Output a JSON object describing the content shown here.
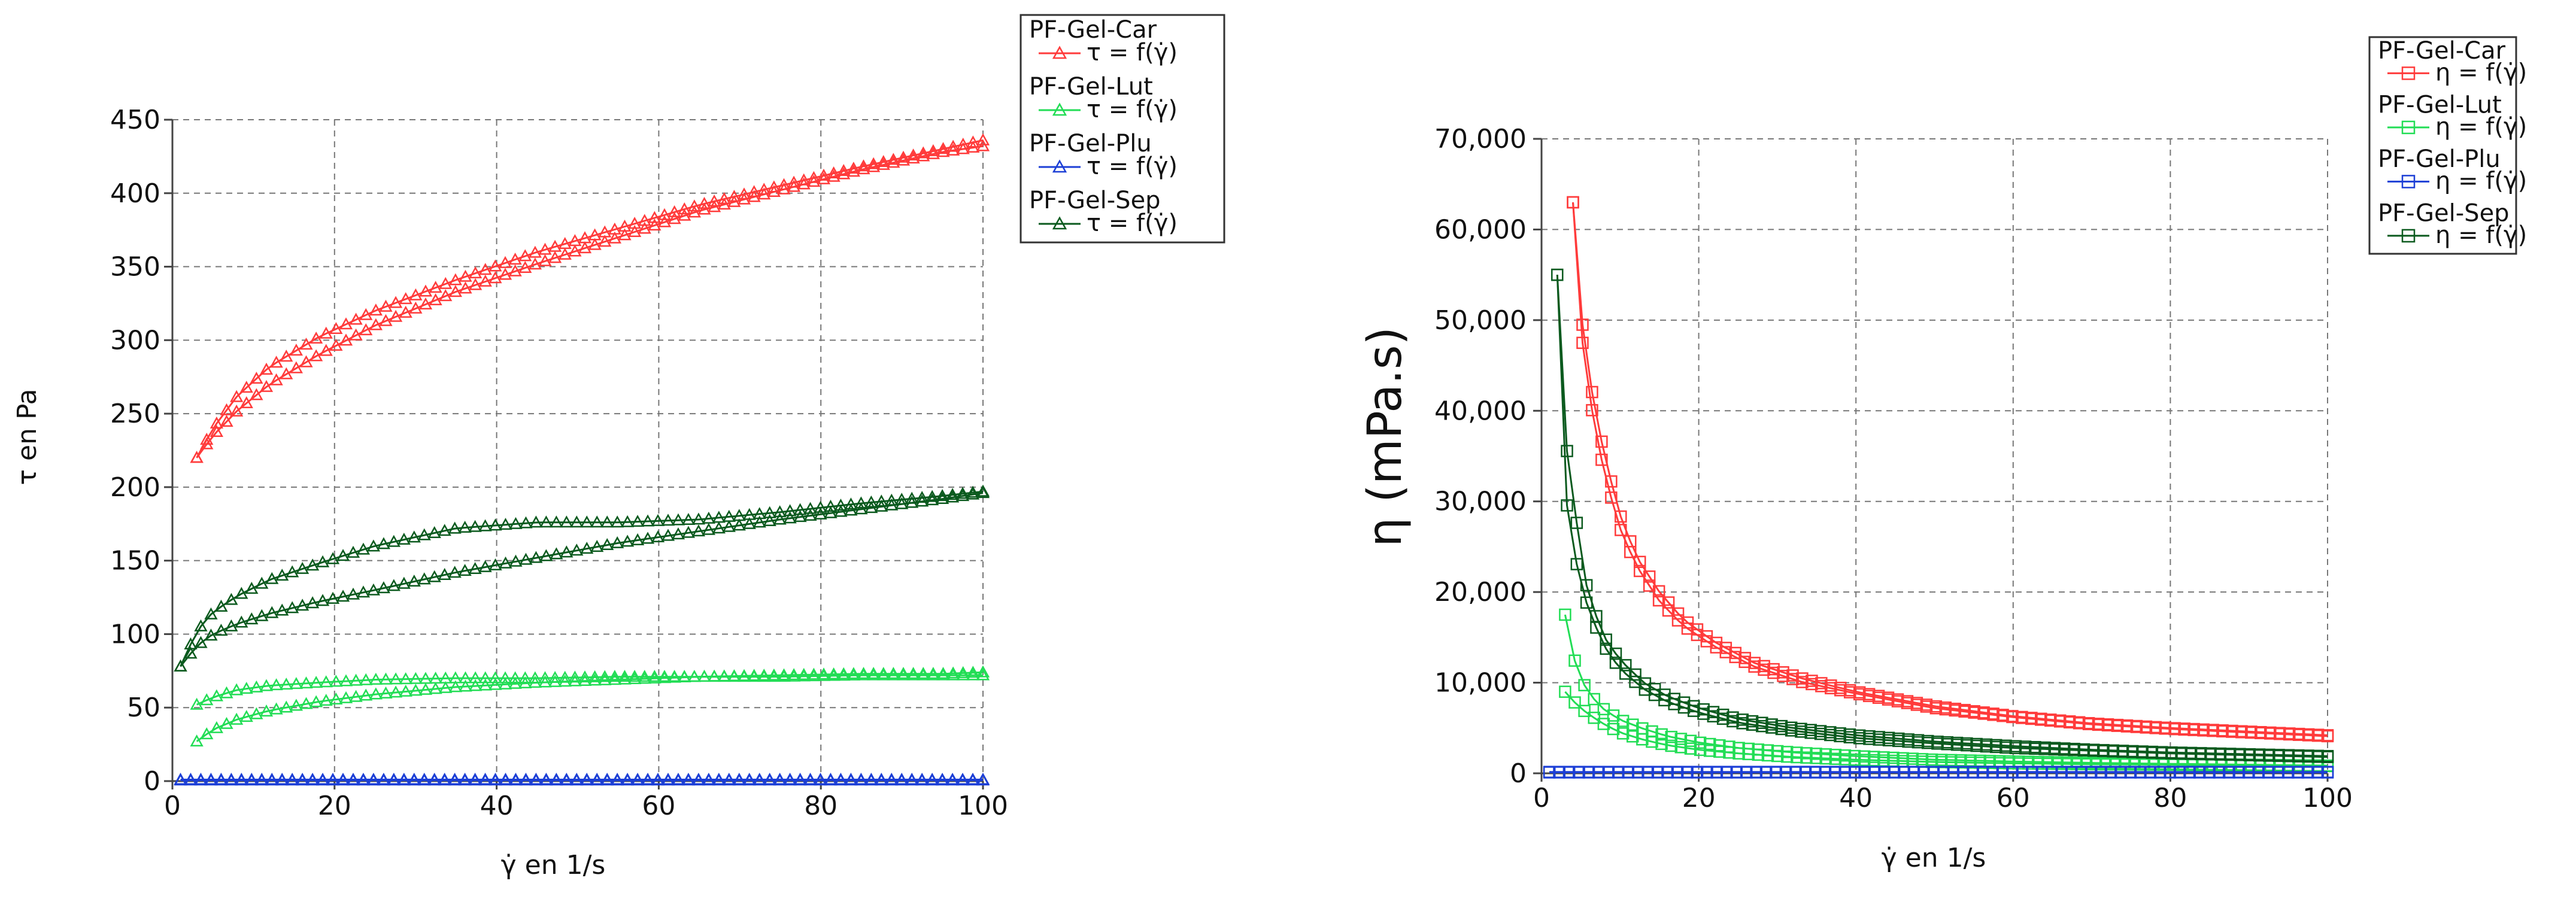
{
  "chart_data": [
    {
      "type": "line",
      "id": "shear-stress",
      "title": "",
      "xlabel": "γ̇ en 1/s",
      "ylabel": "τ en Pa",
      "xlim": [
        0,
        100
      ],
      "ylim": [
        0,
        450
      ],
      "xticks": [
        0,
        20,
        40,
        60,
        80,
        100
      ],
      "yticks": [
        0,
        50,
        100,
        150,
        200,
        250,
        300,
        350,
        400,
        450
      ],
      "ytick_labels": [
        "0",
        "50",
        "100",
        "150",
        "200",
        "250",
        "300",
        "350",
        "400",
        "450"
      ],
      "grid": true,
      "marker": "triangle",
      "legend_position": "top-right",
      "series": [
        {
          "name": "PF-Gel-Car",
          "label": "τ = f(γ̇)",
          "color": "#ff3b3b",
          "up": {
            "x": [
              3,
              5,
              8,
              12,
              18,
              25,
              35,
              45,
              55,
              65,
              75,
              85,
              95,
              100
            ],
            "y": [
              220,
              240,
              262,
              282,
              302,
              320,
              341,
              360,
              376,
              392,
              405,
              418,
              430,
              436
            ]
          },
          "down": {
            "x": [
              3,
              5,
              8,
              12,
              18,
              25,
              35,
              45,
              55,
              65,
              75,
              85,
              95,
              100
            ],
            "y": [
              220,
              235,
              252,
              270,
              290,
              310,
              333,
              352,
              370,
              388,
              402,
              416,
              428,
              432
            ]
          }
        },
        {
          "name": "PF-Gel-Lut",
          "label": "τ = f(γ̇)",
          "color": "#22dd55",
          "up": {
            "x": [
              3,
              5,
              8,
              12,
              18,
              25,
              35,
              45,
              55,
              65,
              75,
              85,
              95,
              100
            ],
            "y": [
              52,
              57,
              62,
              65,
              67,
              69,
              70,
              70,
              71,
              71,
              71,
              72,
              72,
              72
            ]
          },
          "down": {
            "x": [
              3,
              5,
              8,
              12,
              18,
              25,
              35,
              45,
              55,
              65,
              75,
              85,
              95,
              100
            ],
            "y": [
              27,
              35,
              42,
              48,
              54,
              59,
              64,
              67,
              69,
              71,
              72,
              73,
              73,
              74
            ]
          }
        },
        {
          "name": "PF-Gel-Plu",
          "label": "τ = f(γ̇)",
          "color": "#1c3fd6",
          "up": {
            "x": [
              1,
              20,
              40,
              60,
              80,
              100
            ],
            "y": [
              1,
              1,
              1,
              1,
              1,
              1
            ]
          },
          "down": {
            "x": [
              1,
              20,
              40,
              60,
              80,
              100
            ],
            "y": [
              0.5,
              0.5,
              0.5,
              0.5,
              0.5,
              0.5
            ]
          }
        },
        {
          "name": "PF-Gel-Sep",
          "label": "τ = f(γ̇)",
          "color": "#0b5a1e",
          "up": {
            "x": [
              1,
              3,
              5,
              8,
              12,
              18,
              25,
              35,
              45,
              55,
              65,
              75,
              85,
              95,
              100
            ],
            "y": [
              78,
              102,
              115,
              126,
              137,
              148,
              160,
              172,
              176,
              176,
              178,
              183,
              189,
              194,
              197
            ]
          },
          "down": {
            "x": [
              1,
              3,
              5,
              8,
              12,
              18,
              25,
              35,
              45,
              55,
              65,
              75,
              85,
              95,
              100
            ],
            "y": [
              78,
              92,
              100,
              107,
              114,
              122,
              130,
              142,
              152,
              162,
              170,
              178,
              185,
              192,
              196
            ]
          }
        }
      ]
    },
    {
      "type": "line",
      "id": "viscosity",
      "title": "",
      "xlabel": "γ̇ en 1/s",
      "ylabel": "η (mPa.s)",
      "xlim": [
        0,
        100
      ],
      "ylim": [
        0,
        70000
      ],
      "xticks": [
        0,
        20,
        40,
        60,
        80,
        100
      ],
      "yticks": [
        0,
        10000,
        20000,
        30000,
        40000,
        50000,
        60000,
        70000
      ],
      "ytick_labels": [
        "0",
        "10,000",
        "20,000",
        "30,000",
        "40,000",
        "50,000",
        "60,000",
        "70,000"
      ],
      "grid": true,
      "marker": "square",
      "legend_position": "top-right",
      "series": [
        {
          "name": "PF-Gel-Car",
          "label": "η = f(γ̇)",
          "color": "#ff3b3b",
          "up": {
            "x": [
              4,
              5,
              6,
              8,
              10,
              12,
              15,
              18,
              22,
              27,
              33,
              40,
              50,
              60,
              70,
              80,
              90,
              100
            ],
            "y": [
              63000,
              51000,
              44000,
              35000,
              28500,
              24000,
              20000,
              17000,
              14500,
              12200,
              10500,
              9000,
              7400,
              6300,
              5500,
              5000,
              4600,
              4200
            ]
          },
          "down": {
            "x": [
              4,
              5,
              6,
              8,
              10,
              12,
              15,
              18,
              22,
              27,
              33,
              40,
              50,
              60,
              70,
              80,
              90,
              100
            ],
            "y": [
              63000,
              49000,
              42000,
              33000,
              27000,
              23000,
              19000,
              16300,
              14000,
              11800,
              10100,
              8800,
              7200,
              6200,
              5400,
              4900,
              4500,
              4100
            ]
          }
        },
        {
          "name": "PF-Gel-Lut",
          "label": "η = f(γ̇)",
          "color": "#22dd55",
          "up": {
            "x": [
              3,
              4,
              5,
              6,
              8,
              10,
              13,
              16,
              20,
              25,
              32,
              40,
              50,
              60,
              70,
              80,
              90,
              100
            ],
            "y": [
              17500,
              13000,
              10500,
              8800,
              7000,
              5900,
              4900,
              4100,
              3400,
              2800,
              2300,
              1900,
              1500,
              1300,
              1150,
              1050,
              950,
              850
            ]
          },
          "down": {
            "x": [
              3,
              4,
              5,
              6,
              8,
              10,
              13,
              16,
              20,
              25,
              32,
              40,
              50,
              60,
              70,
              80,
              90,
              100
            ],
            "y": [
              9000,
              8000,
              7200,
              6500,
              5400,
              4500,
              3700,
              3100,
              2600,
              2200,
              1800,
              1500,
              1250,
              1100,
              1000,
              950,
              850,
              800
            ]
          }
        },
        {
          "name": "PF-Gel-Plu",
          "label": "η = f(γ̇)",
          "color": "#1c3fd6",
          "up": {
            "x": [
              1,
              20,
              40,
              60,
              80,
              100
            ],
            "y": [
              150,
              150,
              150,
              150,
              150,
              150
            ]
          },
          "down": {
            "x": [
              1,
              20,
              40,
              60,
              80,
              100
            ],
            "y": [
              100,
              100,
              100,
              100,
              100,
              100
            ]
          }
        },
        {
          "name": "PF-Gel-Sep",
          "label": "η = f(γ̇)",
          "color": "#0b5a1e",
          "up": {
            "x": [
              2,
              3,
              4,
              5,
              6,
              8,
              10,
              13,
              16,
              20,
              25,
              32,
              40,
              50,
              60,
              70,
              80,
              90,
              100
            ],
            "y": [
              55000,
              37000,
              31000,
              24000,
              19500,
              15000,
              12500,
              10000,
              8500,
              7200,
              6000,
              5000,
              4200,
              3500,
              3000,
              2600,
              2300,
              2100,
              1900
            ]
          },
          "down": {
            "x": [
              2,
              3,
              4,
              5,
              6,
              8,
              10,
              13,
              16,
              20,
              25,
              32,
              40,
              50,
              60,
              70,
              80,
              90,
              100
            ],
            "y": [
              55000,
              31000,
              25000,
              21000,
              18000,
              14000,
              11500,
              9300,
              7900,
              6700,
              5600,
              4700,
              3900,
              3300,
              2800,
              2500,
              2200,
              2000,
              1800
            ]
          }
        }
      ]
    }
  ]
}
